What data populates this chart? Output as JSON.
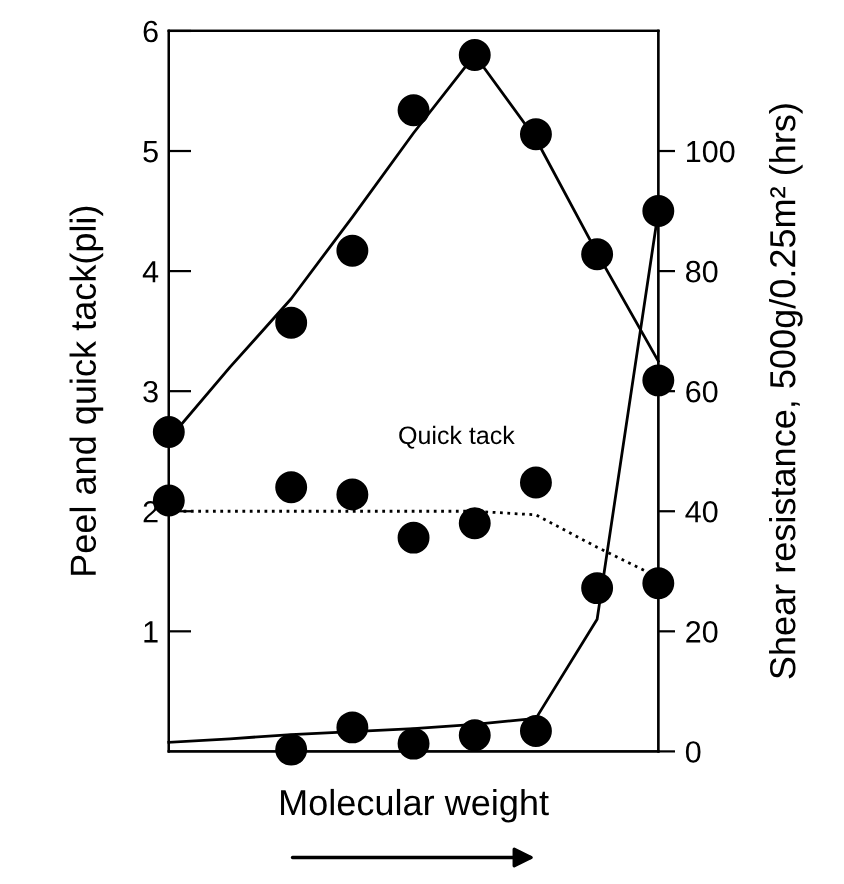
{
  "chart_data": {
    "type": "scatter",
    "xlabel": "Molecular weight",
    "ylabel": "Peel and quick tack(pli)",
    "y2label": "Shear resistance, 500g/0.25m² (hrs)",
    "categories": [
      null,
      null,
      null,
      null,
      null,
      null,
      null,
      null,
      null
    ],
    "ylim": [
      0,
      6
    ],
    "yticks": [
      1,
      2,
      3,
      4,
      5,
      6
    ],
    "y2lim": [
      0,
      120
    ],
    "y2ticks": [
      0,
      20,
      40,
      60,
      80,
      100
    ],
    "grid": false,
    "legend": false,
    "series": [
      {
        "color": "#000000",
        "marker": "circle",
        "values": [
          2.66,
          null,
          3.57,
          4.17,
          5.34,
          5.8,
          5.14,
          4.14,
          3.09
        ]
      },
      {
        "type": "line",
        "color": "#000000",
        "line_style": "solid",
        "marker": "none",
        "values": [
          2.6,
          3.2,
          3.77,
          4.45,
          5.15,
          5.8,
          5.1,
          4.15,
          3.25
        ]
      },
      {
        "name": "Quick tack",
        "color": "#000000",
        "marker": "circle",
        "values": [
          2.09,
          null,
          2.2,
          2.14,
          1.78,
          1.9,
          2.24,
          1.36,
          1.4
        ]
      },
      {
        "type": "line",
        "color": "#000000",
        "line_style": "dotted",
        "marker": "none",
        "values": [
          2.0,
          2.0,
          2.0,
          2.0,
          2.0,
          2.0,
          1.97,
          1.7,
          1.45
        ]
      },
      {
        "axis": "y2",
        "color": "#000000",
        "marker": "circle",
        "values": [
          null,
          null,
          0.3,
          4,
          1.3,
          2.7,
          3.4,
          null,
          90
        ]
      },
      {
        "type": "line",
        "axis": "y2",
        "color": "#000000",
        "line_style": "solid",
        "marker": "none",
        "values": [
          1.5,
          2.1,
          2.8,
          3.3,
          3.8,
          4.5,
          5.5,
          22,
          90
        ]
      }
    ]
  }
}
